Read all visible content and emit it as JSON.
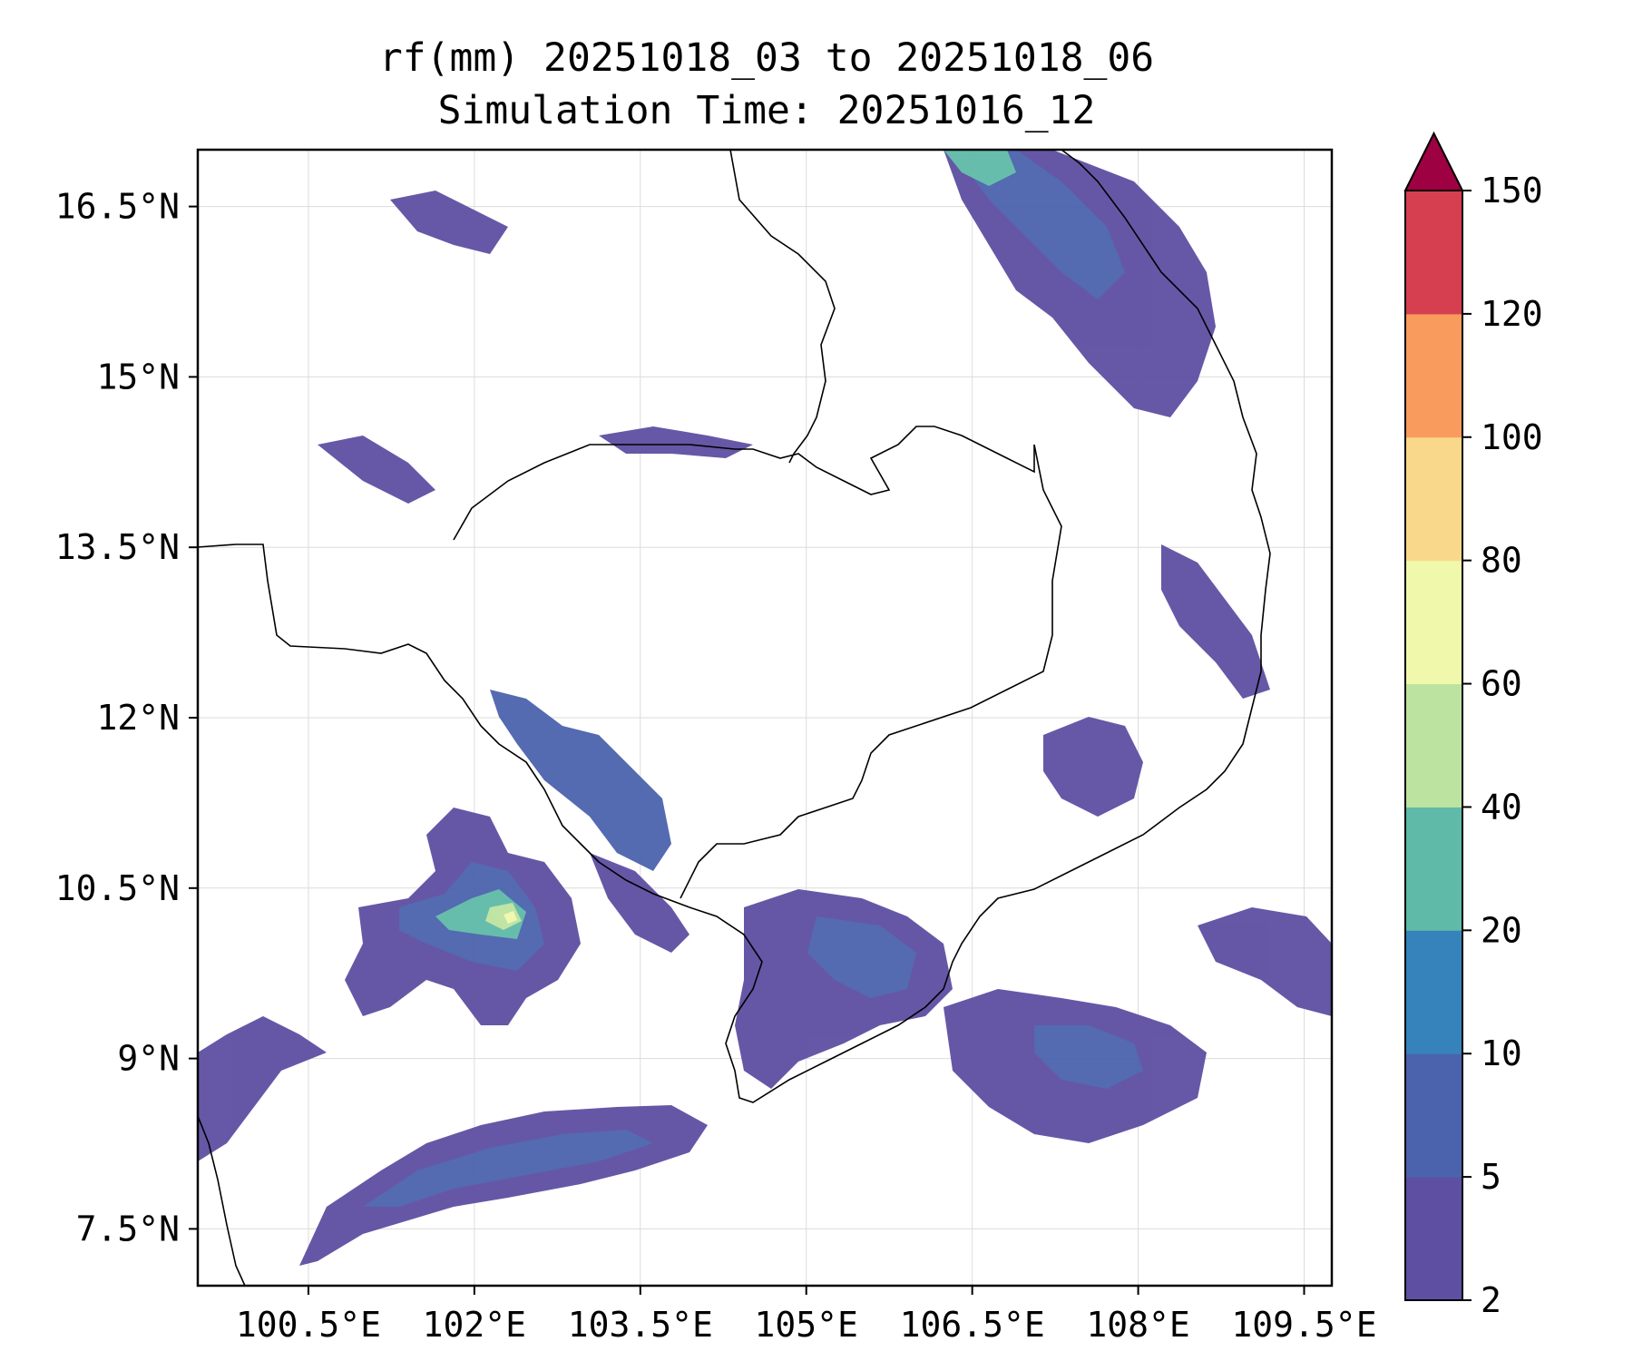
{
  "title": {
    "line1": "rf(mm) 20251018_03 to 20251018_06",
    "line2": "Simulation Time: 20251016_12"
  },
  "map": {
    "lon_range": [
      99.5,
      109.75
    ],
    "lat_range": [
      7.0,
      17.0
    ],
    "x_ticks": [
      {
        "lon": 100.5,
        "label": "100.5°E"
      },
      {
        "lon": 102.0,
        "label": "102°E"
      },
      {
        "lon": 103.5,
        "label": "103.5°E"
      },
      {
        "lon": 105.0,
        "label": "105°E"
      },
      {
        "lon": 106.5,
        "label": "106.5°E"
      },
      {
        "lon": 108.0,
        "label": "108°E"
      },
      {
        "lon": 109.5,
        "label": "109.5°E"
      }
    ],
    "y_ticks": [
      {
        "lat": 7.5,
        "label": "7.5°N"
      },
      {
        "lat": 9.0,
        "label": "9°N"
      },
      {
        "lat": 10.5,
        "label": "10.5°N"
      },
      {
        "lat": 12.0,
        "label": "12°N"
      },
      {
        "lat": 13.5,
        "label": "13.5°N"
      },
      {
        "lat": 15.0,
        "label": "15°N"
      },
      {
        "lat": 16.5,
        "label": "16.5°N"
      }
    ],
    "grid": true
  },
  "colorbar": {
    "levels": [
      {
        "value": 2,
        "label": "2"
      },
      {
        "value": 5,
        "label": "5"
      },
      {
        "value": 10,
        "label": "10"
      },
      {
        "value": 20,
        "label": "20"
      },
      {
        "value": 40,
        "label": "40"
      },
      {
        "value": 60,
        "label": "60"
      },
      {
        "value": 80,
        "label": "80"
      },
      {
        "value": 100,
        "label": "100"
      },
      {
        "value": 120,
        "label": "120"
      },
      {
        "value": 150,
        "label": "150"
      }
    ],
    "colors": [
      "#5e4fa2",
      "#4b63ad",
      "#3682ba",
      "#5fbaa8",
      "#bce3a0",
      "#f0f8ab",
      "#fad88b",
      "#f89b5c",
      "#d53f4f"
    ],
    "extend_color": "#9e0142"
  }
}
